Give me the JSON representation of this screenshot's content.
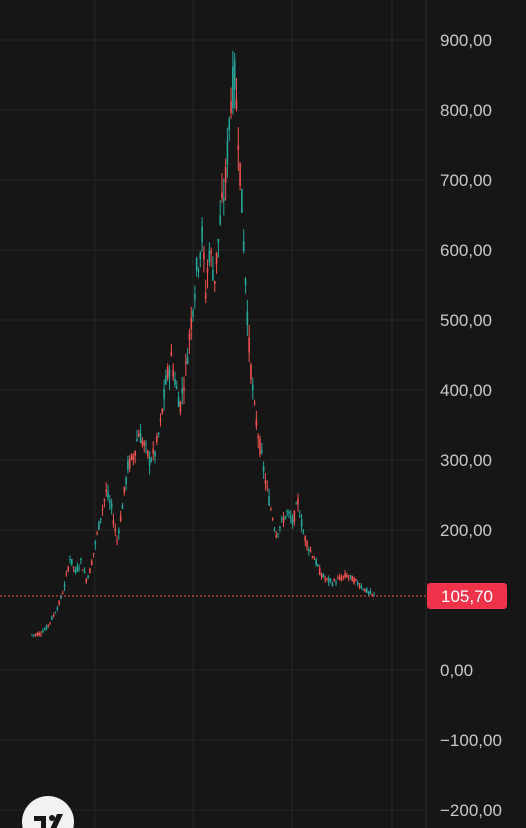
{
  "chart_data": {
    "type": "candlestick",
    "title": "",
    "ylim": [
      -200,
      900
    ],
    "y_ticks": [
      {
        "value": 900,
        "label": "900,00"
      },
      {
        "value": 800,
        "label": "800,00"
      },
      {
        "value": 700,
        "label": "700,00"
      },
      {
        "value": 600,
        "label": "600,00"
      },
      {
        "value": 500,
        "label": "500,00"
      },
      {
        "value": 400,
        "label": "400,00"
      },
      {
        "value": 300,
        "label": "300,00"
      },
      {
        "value": 200,
        "label": "200,00"
      },
      {
        "value": 0,
        "label": "0,00"
      },
      {
        "value": -100,
        "label": "−100,00"
      },
      {
        "value": -200,
        "label": "−200,00"
      }
    ],
    "grid": true,
    "current_price": {
      "value": 105.7,
      "label": "105,70"
    },
    "price_path": [
      [
        0,
        50
      ],
      [
        4,
        52
      ],
      [
        8,
        60
      ],
      [
        12,
        78
      ],
      [
        15,
        95
      ],
      [
        18,
        120
      ],
      [
        21,
        160
      ],
      [
        24,
        140
      ],
      [
        27,
        155
      ],
      [
        30,
        130
      ],
      [
        32,
        142
      ],
      [
        35,
        180
      ],
      [
        38,
        220
      ],
      [
        41,
        255
      ],
      [
        44,
        230
      ],
      [
        47,
        185
      ],
      [
        50,
        235
      ],
      [
        53,
        290
      ],
      [
        56,
        305
      ],
      [
        59,
        340
      ],
      [
        62,
        320
      ],
      [
        65,
        300
      ],
      [
        68,
        310
      ],
      [
        71,
        350
      ],
      [
        74,
        410
      ],
      [
        77,
        445
      ],
      [
        80,
        400
      ],
      [
        82,
        380
      ],
      [
        85,
        430
      ],
      [
        88,
        500
      ],
      [
        91,
        570
      ],
      [
        94,
        620
      ],
      [
        96,
        540
      ],
      [
        98,
        600
      ],
      [
        101,
        560
      ],
      [
        104,
        640
      ],
      [
        107,
        700
      ],
      [
        110,
        820
      ],
      [
        112,
        845
      ],
      [
        114,
        770
      ],
      [
        117,
        610
      ],
      [
        120,
        460
      ],
      [
        123,
        370
      ],
      [
        126,
        320
      ],
      [
        129,
        270
      ],
      [
        132,
        230
      ],
      [
        135,
        195
      ],
      [
        138,
        210
      ],
      [
        141,
        225
      ],
      [
        144,
        210
      ],
      [
        147,
        240
      ],
      [
        150,
        195
      ],
      [
        153,
        175
      ],
      [
        156,
        160
      ],
      [
        159,
        140
      ],
      [
        162,
        130
      ],
      [
        166,
        125
      ],
      [
        170,
        130
      ],
      [
        174,
        135
      ],
      [
        178,
        128
      ],
      [
        182,
        120
      ],
      [
        186,
        110
      ],
      [
        189,
        105.7
      ]
    ],
    "colors": {
      "up": "#26a69a",
      "down": "#ef5350",
      "background": "#161616",
      "grid": "#262626",
      "axis_text": "#c9c9c9",
      "price_line": "#ef5350",
      "price_badge": "#f0334b"
    }
  },
  "branding": {
    "logo_icon": "tradingview-logo-icon"
  }
}
